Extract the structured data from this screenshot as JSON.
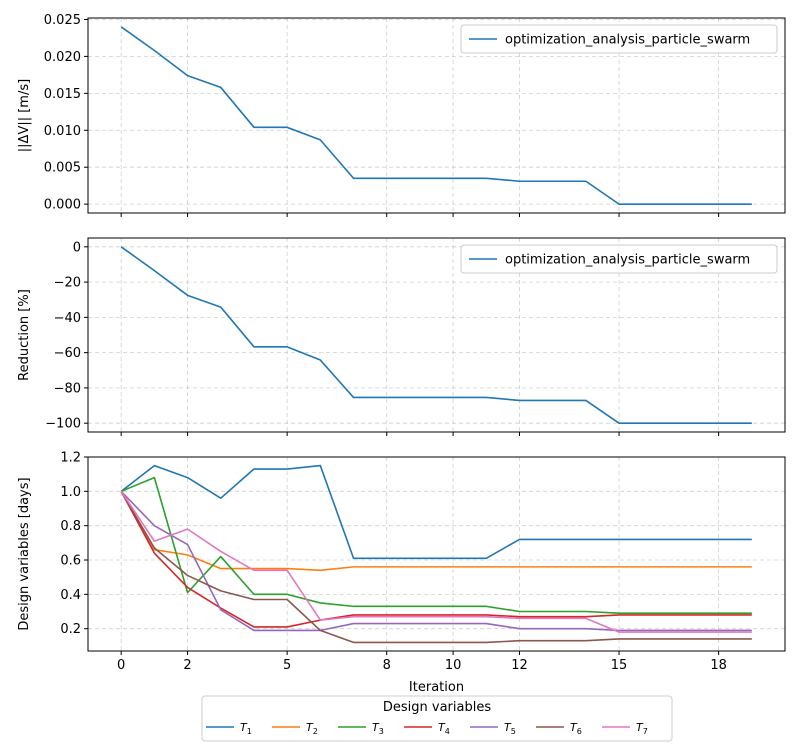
{
  "chart_data": [
    {
      "type": "line",
      "title": "",
      "xlabel": "",
      "ylabel": "||ΔV|| [m/s]",
      "x": [
        0,
        1,
        2,
        3,
        4,
        5,
        6,
        7,
        8,
        9,
        10,
        11,
        12,
        13,
        14,
        15,
        16,
        17,
        18,
        19
      ],
      "x_ticks": [
        0,
        2,
        5,
        8,
        10,
        12,
        15,
        18
      ],
      "x_ticks_visible": false,
      "xlim": [
        -1,
        20
      ],
      "ylim": [
        -0.0012,
        0.0252
      ],
      "y_ticks": [
        0.0,
        0.005,
        0.01,
        0.015,
        0.02,
        0.025
      ],
      "y_tick_labels": [
        "0.000",
        "0.005",
        "0.010",
        "0.015",
        "0.020",
        "0.025"
      ],
      "grid": true,
      "legend": "top-right",
      "series": [
        {
          "name": "optimization_analysis_particle_swarm",
          "color": "#1f77b4",
          "values": [
            0.024,
            0.0208,
            0.0174,
            0.0158,
            0.0104,
            0.0104,
            0.0087,
            0.0035,
            0.0035,
            0.0035,
            0.0035,
            0.0035,
            0.0031,
            0.0031,
            0.0031,
            0.0,
            0.0,
            0.0,
            0.0,
            0.0
          ]
        }
      ]
    },
    {
      "type": "line",
      "title": "",
      "xlabel": "",
      "ylabel": "Reduction [%]",
      "x": [
        0,
        1,
        2,
        3,
        4,
        5,
        6,
        7,
        8,
        9,
        10,
        11,
        12,
        13,
        14,
        15,
        16,
        17,
        18,
        19
      ],
      "x_ticks": [
        0,
        2,
        5,
        8,
        10,
        12,
        15,
        18
      ],
      "x_ticks_visible": false,
      "xlim": [
        -1,
        20
      ],
      "ylim": [
        -105,
        5
      ],
      "y_ticks": [
        0,
        -20,
        -40,
        -60,
        -80,
        -100
      ],
      "y_tick_labels": [
        "0",
        "−20",
        "−40",
        "−60",
        "−80",
        "−100"
      ],
      "grid": true,
      "legend": "top-right",
      "series": [
        {
          "name": "optimization_analysis_particle_swarm",
          "color": "#1f77b4",
          "values": [
            0,
            -13.5,
            -27.5,
            -34.2,
            -56.7,
            -56.7,
            -64.2,
            -85.4,
            -85.4,
            -85.4,
            -85.4,
            -85.4,
            -87.1,
            -87.1,
            -87.1,
            -100,
            -100,
            -100,
            -100,
            -100
          ]
        }
      ]
    },
    {
      "type": "line",
      "title": "",
      "xlabel": "Iteration",
      "ylabel": "Design variables [days]",
      "x": [
        0,
        1,
        2,
        3,
        4,
        5,
        6,
        7,
        8,
        9,
        10,
        11,
        12,
        13,
        14,
        15,
        16,
        17,
        18,
        19
      ],
      "x_ticks": [
        0,
        2,
        5,
        8,
        10,
        12,
        15,
        18
      ],
      "x_tick_labels": [
        "0",
        "2",
        "5",
        "8",
        "10",
        "12",
        "15",
        "18"
      ],
      "x_ticks_visible": true,
      "xlim": [
        -1,
        20
      ],
      "ylim": [
        0.07,
        1.2
      ],
      "y_ticks": [
        0.2,
        0.4,
        0.6,
        0.8,
        1.0,
        1.2
      ],
      "y_tick_labels": [
        "0.2",
        "0.4",
        "0.6",
        "0.8",
        "1.0",
        "1.2"
      ],
      "grid": true,
      "legend_title": "Design variables",
      "legend": "below",
      "series": [
        {
          "name": "T",
          "sub": "1",
          "color": "#1f77b4",
          "values": [
            1.0,
            1.15,
            1.08,
            0.96,
            1.13,
            1.13,
            1.15,
            0.61,
            0.61,
            0.61,
            0.61,
            0.61,
            0.72,
            0.72,
            0.72,
            0.72,
            0.72,
            0.72,
            0.72,
            0.72
          ]
        },
        {
          "name": "T",
          "sub": "2",
          "color": "#ff7f0e",
          "values": [
            1.0,
            0.66,
            0.63,
            0.55,
            0.55,
            0.55,
            0.54,
            0.56,
            0.56,
            0.56,
            0.56,
            0.56,
            0.56,
            0.56,
            0.56,
            0.56,
            0.56,
            0.56,
            0.56,
            0.56
          ]
        },
        {
          "name": "T",
          "sub": "3",
          "color": "#2ca02c",
          "values": [
            1.0,
            1.08,
            0.41,
            0.62,
            0.4,
            0.4,
            0.35,
            0.33,
            0.33,
            0.33,
            0.33,
            0.33,
            0.3,
            0.3,
            0.3,
            0.29,
            0.29,
            0.29,
            0.29,
            0.29
          ]
        },
        {
          "name": "T",
          "sub": "4",
          "color": "#d62728",
          "values": [
            1.0,
            0.64,
            0.44,
            0.32,
            0.21,
            0.21,
            0.25,
            0.28,
            0.28,
            0.28,
            0.28,
            0.28,
            0.27,
            0.27,
            0.27,
            0.28,
            0.28,
            0.28,
            0.28,
            0.28
          ]
        },
        {
          "name": "T",
          "sub": "5",
          "color": "#9467bd",
          "values": [
            1.0,
            0.8,
            0.69,
            0.31,
            0.19,
            0.19,
            0.19,
            0.23,
            0.23,
            0.23,
            0.23,
            0.23,
            0.2,
            0.2,
            0.2,
            0.19,
            0.19,
            0.19,
            0.19,
            0.19
          ]
        },
        {
          "name": "T",
          "sub": "6",
          "color": "#8c564b",
          "values": [
            1.0,
            0.67,
            0.51,
            0.42,
            0.37,
            0.37,
            0.19,
            0.12,
            0.12,
            0.12,
            0.12,
            0.12,
            0.13,
            0.13,
            0.13,
            0.14,
            0.14,
            0.14,
            0.14,
            0.14
          ]
        },
        {
          "name": "T",
          "sub": "7",
          "color": "#e377c2",
          "values": [
            1.0,
            0.71,
            0.78,
            0.65,
            0.54,
            0.54,
            0.25,
            0.27,
            0.27,
            0.27,
            0.27,
            0.27,
            0.26,
            0.26,
            0.26,
            0.18,
            0.18,
            0.18,
            0.18,
            0.18
          ]
        }
      ]
    }
  ]
}
